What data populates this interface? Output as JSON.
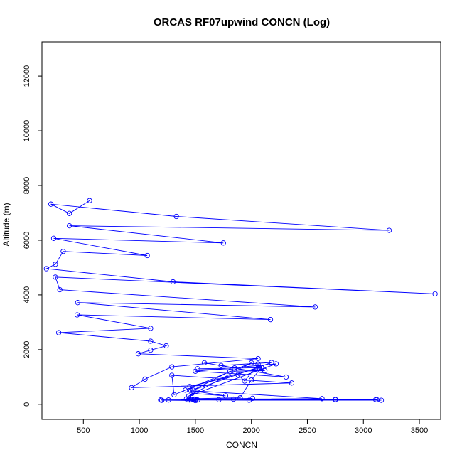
{
  "chart_data": {
    "type": "line",
    "title": "ORCAS RF07upwind CONCN (Log)",
    "xlabel": "CONCN",
    "ylabel": "Altitude (m)",
    "xlim": [
      130,
      3690
    ],
    "ylim": [
      -550,
      13250
    ],
    "xticks": [
      500,
      1000,
      1500,
      2000,
      2500,
      3000,
      3500
    ],
    "yticks": [
      0,
      2000,
      4000,
      6000,
      8000,
      10000,
      12000
    ],
    "series": [
      {
        "name": "CONCN",
        "color": "#0000ff",
        "x": [
          555,
          375,
          210,
          1330,
          3230,
          375,
          1750,
          235,
          1070,
          320,
          250,
          170,
          1300,
          3640,
          250,
          290,
          2570,
          450,
          2170,
          445,
          1100,
          280,
          1100,
          1240,
          1100,
          990,
          2060,
          1290,
          1050,
          930,
          2360,
          1290,
          1310,
          1410,
          2000,
          1440,
          2220,
          1500,
          2310,
          1580,
          1850,
          1730,
          2180,
          1480,
          1810,
          2120,
          1520,
          2070,
          2060,
          1940,
          1880,
          1450,
          2090,
          2000,
          1900,
          1420,
          1470,
          1770,
          1460,
          2630,
          1500,
          2750,
          1520,
          3120,
          1490,
          1460,
          2010,
          1710,
          1840,
          3160,
          1980,
          1450,
          1500,
          1200,
          1260,
          1460,
          2750,
          3110,
          1190,
          1490
        ],
        "y": [
          7450,
          6980,
          7320,
          6870,
          6360,
          6530,
          5900,
          6070,
          5440,
          5590,
          5120,
          4960,
          4480,
          4040,
          4650,
          4190,
          3560,
          3720,
          3100,
          3270,
          2780,
          2620,
          2310,
          2140,
          1980,
          1850,
          1670,
          1370,
          920,
          610,
          780,
          1060,
          350,
          520,
          1520,
          300,
          1480,
          1210,
          1000,
          1520,
          1330,
          1420,
          1530,
          520,
          1210,
          1230,
          1300,
          1340,
          1470,
          850,
          1080,
          650,
          1350,
          890,
          240,
          200,
          400,
          310,
          500,
          210,
          180,
          170,
          160,
          170,
          190,
          180,
          220,
          170,
          190,
          150,
          150,
          160,
          140,
          150,
          160,
          170,
          180,
          170,
          160,
          170
        ]
      }
    ]
  }
}
